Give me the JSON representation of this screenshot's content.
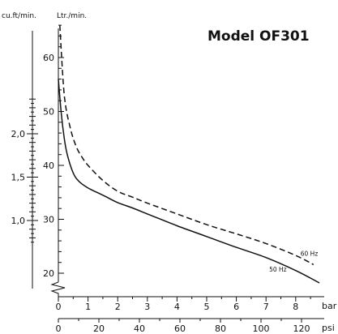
{
  "title": "Model OF301",
  "units": {
    "left_outer": "cu.ft/min.",
    "left_inner": "Ltr./min.",
    "bottom_top": "bar",
    "bottom_bottom": "psi"
  },
  "chart_data": {
    "type": "line",
    "title": "Model OF301",
    "xlabel": "bar",
    "x2label": "psi",
    "ylabel": "Ltr./min.",
    "y2label": "cu.ft/min.",
    "xlim": [
      0,
      8.8
    ],
    "ylim": [
      18,
      67
    ],
    "x_ticks": [
      0,
      1,
      2,
      3,
      4,
      5,
      6,
      7,
      8
    ],
    "x_ticks_psi": [
      0,
      20,
      40,
      60,
      80,
      100,
      120
    ],
    "y_ticks": [
      20,
      30,
      40,
      50,
      60
    ],
    "y_ticks_cuft": [
      "1,0",
      "1,5",
      "2,0"
    ],
    "grid": false,
    "series": [
      {
        "name": "60 Hz",
        "style": "dashed",
        "x": [
          0.05,
          0.2,
          0.4,
          0.6,
          0.8,
          1.0,
          1.5,
          2.0,
          2.5,
          3.0,
          4.0,
          5.0,
          6.0,
          7.0,
          8.0,
          8.6
        ],
        "y": [
          66,
          53,
          47,
          43.5,
          41.5,
          40,
          37.2,
          35.2,
          34.1,
          33.0,
          31.0,
          29.0,
          27.3,
          25.5,
          23.3,
          21.6
        ]
      },
      {
        "name": "50 Hz",
        "style": "solid",
        "x": [
          0.0,
          0.1,
          0.2,
          0.3,
          0.5,
          0.7,
          1.0,
          1.3,
          1.6,
          2.0,
          2.5,
          3.0,
          4.0,
          5.0,
          6.0,
          7.0,
          8.0,
          8.8
        ],
        "y": [
          56,
          49.5,
          45,
          42,
          38.6,
          37.0,
          35.8,
          35.0,
          34.2,
          33.1,
          32.1,
          31.0,
          28.8,
          26.8,
          24.8,
          22.9,
          20.5,
          18.2
        ]
      }
    ]
  }
}
